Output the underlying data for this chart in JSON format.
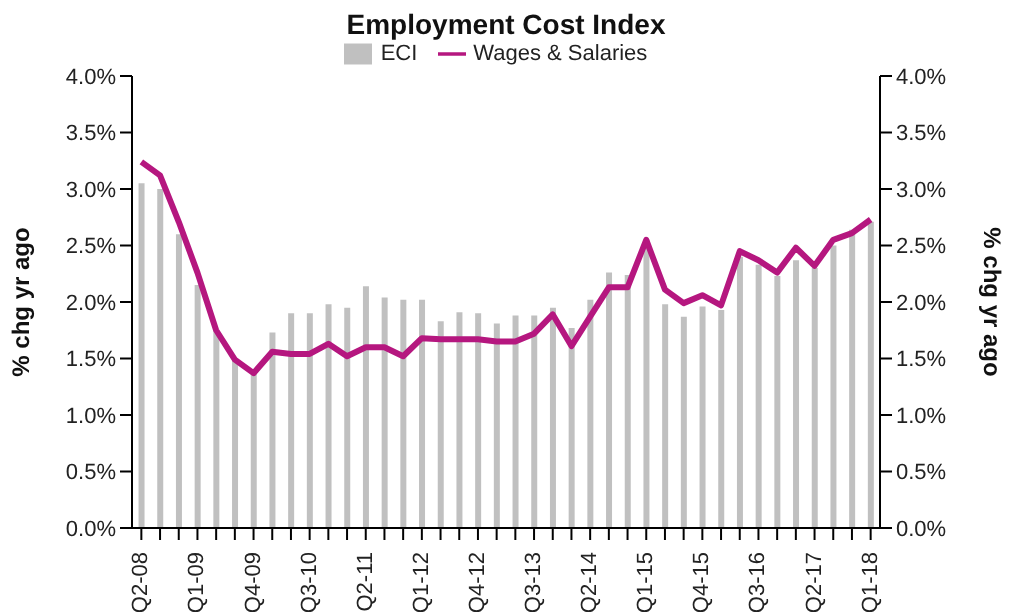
{
  "chart_data": {
    "type": "bar",
    "title": "Employment Cost Index",
    "ylabel": "% chg yr ago",
    "y2label": "% chg yr ago",
    "categories": [
      "Q2-08",
      null,
      null,
      "Q1-09",
      null,
      null,
      "Q4-09",
      null,
      null,
      "Q3-10",
      null,
      null,
      "Q2-11",
      null,
      null,
      "Q1-12",
      null,
      null,
      "Q4-12",
      null,
      null,
      "Q3-13",
      null,
      null,
      "Q2-14",
      null,
      null,
      "Q1-15",
      null,
      null,
      "Q4-15",
      null,
      null,
      "Q3-16",
      null,
      null,
      "Q2-17",
      null,
      null,
      "Q1-18"
    ],
    "series": [
      {
        "name": "ECI",
        "color": "#c0c0c0",
        "values": [
          3.05,
          3.0,
          2.6,
          2.15,
          1.75,
          1.5,
          1.4,
          1.73,
          1.9,
          1.9,
          1.98,
          1.95,
          2.14,
          2.04,
          2.02,
          2.02,
          1.83,
          1.91,
          1.9,
          1.81,
          1.88,
          1.88,
          1.95,
          1.77,
          2.02,
          2.26,
          2.24,
          2.55,
          1.98,
          1.87,
          1.96,
          1.93,
          2.4,
          2.33,
          2.23,
          2.37,
          2.3,
          2.5,
          2.64,
          2.71
        ]
      },
      {
        "name": "Wages & Salaries",
        "type": "line",
        "color": "#b5177f",
        "values": [
          3.24,
          3.12,
          2.71,
          2.26,
          1.75,
          1.49,
          1.37,
          1.56,
          1.54,
          1.54,
          1.63,
          1.52,
          1.6,
          1.6,
          1.52,
          1.68,
          1.67,
          1.67,
          1.67,
          1.65,
          1.65,
          1.72,
          1.89,
          1.61,
          1.87,
          2.13,
          2.13,
          2.55,
          2.11,
          1.99,
          2.06,
          1.97,
          2.45,
          2.37,
          2.26,
          2.48,
          2.32,
          2.55,
          2.61,
          2.73
        ]
      }
    ],
    "ylim": [
      0,
      4
    ],
    "yticks": [
      {
        "value": 0,
        "label": "0.0%"
      },
      {
        "value": 0.5,
        "label": "0.5%"
      },
      {
        "value": 1,
        "label": "1.0%"
      },
      {
        "value": 1.5,
        "label": "1.5%"
      },
      {
        "value": 2,
        "label": "2.0%"
      },
      {
        "value": 2.5,
        "label": "2.5%"
      },
      {
        "value": 3,
        "label": "3.0%"
      },
      {
        "value": 3.5,
        "label": "3.5%"
      },
      {
        "value": 4,
        "label": "4.0%"
      }
    ],
    "y2lim": [
      0,
      4
    ],
    "y2ticks": [
      {
        "value": 0,
        "label": "0.0%"
      },
      {
        "value": 0.5,
        "label": "0.5%"
      },
      {
        "value": 1,
        "label": "1.0%"
      },
      {
        "value": 1.5,
        "label": "1.5%"
      },
      {
        "value": 2,
        "label": "2.0%"
      },
      {
        "value": 2.5,
        "label": "2.5%"
      },
      {
        "value": 3,
        "label": "3.0%"
      },
      {
        "value": 3.5,
        "label": "3.5%"
      },
      {
        "value": 4,
        "label": "4.0%"
      }
    ],
    "legend": "top",
    "grid": false,
    "marker": "none",
    "line_style": "solid"
  }
}
